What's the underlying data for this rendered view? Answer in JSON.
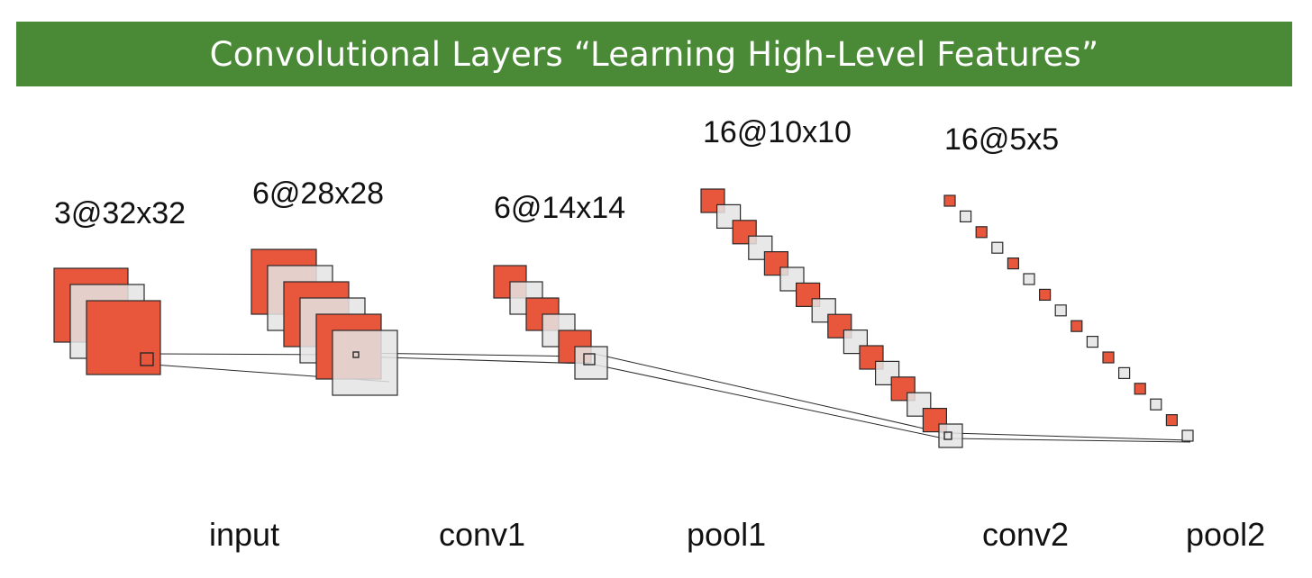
{
  "title": "Convolutional Layers “Learning High-Level Features”",
  "colors": {
    "banner": "#4a8a36",
    "feature_map": "#e8563c",
    "feature_map_alt": "#e4e4e4",
    "stroke": "#2a2a2a"
  },
  "layers": [
    {
      "id": "input",
      "dimension": "3@32x32",
      "channels": 3
    },
    {
      "id": "conv1",
      "dimension": "6@28x28",
      "channels": 6
    },
    {
      "id": "pool1",
      "dimension": "6@14x14",
      "channels": 6
    },
    {
      "id": "conv2",
      "dimension": "16@10x10",
      "channels": 16
    },
    {
      "id": "pool2",
      "dimension": "16@5x5",
      "channels": 16
    }
  ],
  "stage_labels": [
    "input",
    "conv1",
    "pool1",
    "conv2",
    "pool2"
  ]
}
